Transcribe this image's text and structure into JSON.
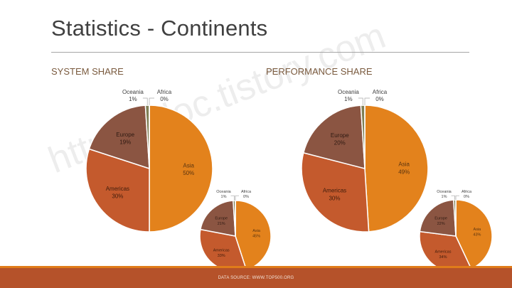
{
  "page": {
    "title": "Statistics - Continents",
    "watermark": "http://ydoc.tistory.com",
    "footer": "DATA SOURCE: WWW.TOP500.ORG"
  },
  "chart_data": [
    {
      "type": "pie",
      "title": "SYSTEM SHARE",
      "slices": [
        {
          "label": "Asia",
          "value": 50,
          "pct_label": "50%",
          "color": "#e3821c"
        },
        {
          "label": "Americas",
          "value": 30,
          "pct_label": "30%",
          "color": "#c45a2d"
        },
        {
          "label": "Europe",
          "value": 19,
          "pct_label": "19%",
          "color": "#8b5542"
        },
        {
          "label": "Oceania",
          "value": 1,
          "pct_label": "1%",
          "color": "#7f7f55"
        },
        {
          "label": "Africa",
          "value": 0,
          "pct_label": "0%",
          "color": "#a6a6a6"
        }
      ]
    },
    {
      "type": "pie",
      "title": "",
      "slices": [
        {
          "label": "Asia",
          "value": 45,
          "pct_label": "45%",
          "color": "#e3821c"
        },
        {
          "label": "Americas",
          "value": 33,
          "pct_label": "33%",
          "color": "#c45a2d"
        },
        {
          "label": "Europe",
          "value": 21,
          "pct_label": "21%",
          "color": "#8b5542"
        },
        {
          "label": "Oceania",
          "value": 1,
          "pct_label": "1%",
          "color": "#7f7f55"
        },
        {
          "label": "Africa",
          "value": 0,
          "pct_label": "0%",
          "color": "#a6a6a6"
        }
      ]
    },
    {
      "type": "pie",
      "title": "PERFORMANCE SHARE",
      "slices": [
        {
          "label": "Asia",
          "value": 49,
          "pct_label": "49%",
          "color": "#e3821c"
        },
        {
          "label": "Americas",
          "value": 30,
          "pct_label": "30%",
          "color": "#c45a2d"
        },
        {
          "label": "Europe",
          "value": 20,
          "pct_label": "20%",
          "color": "#8b5542"
        },
        {
          "label": "Oceania",
          "value": 1,
          "pct_label": "1%",
          "color": "#7f7f55"
        },
        {
          "label": "Africa",
          "value": 0,
          "pct_label": "0%",
          "color": "#a6a6a6"
        }
      ]
    },
    {
      "type": "pie",
      "title": "",
      "slices": [
        {
          "label": "Asia",
          "value": 43,
          "pct_label": "43%",
          "color": "#e3821c"
        },
        {
          "label": "Americas",
          "value": 34,
          "pct_label": "34%",
          "color": "#c45a2d"
        },
        {
          "label": "Europe",
          "value": 22,
          "pct_label": "22%",
          "color": "#8b5542"
        },
        {
          "label": "Oceania",
          "value": 1,
          "pct_label": "1%",
          "color": "#7f7f55"
        },
        {
          "label": "Africa",
          "value": 0,
          "pct_label": "0%",
          "color": "#a6a6a6"
        }
      ]
    }
  ]
}
